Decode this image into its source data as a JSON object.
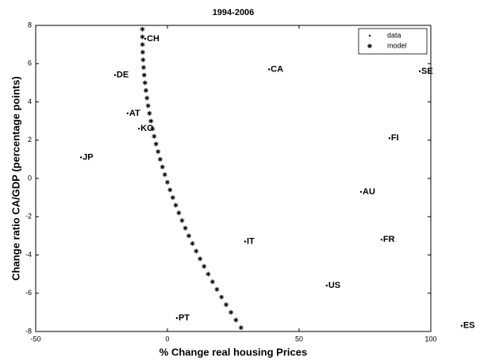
{
  "chart_data": {
    "type": "scatter",
    "title": "1994-2006",
    "xlabel": "% Change real housing Prices",
    "ylabel": "Change ratio CA/GDP (percentage points)",
    "xlim": [
      -50,
      100
    ],
    "ylim": [
      -8,
      8
    ],
    "xticks": [
      -50,
      0,
      50,
      100
    ],
    "yticks": [
      -8,
      -6,
      -4,
      -2,
      0,
      2,
      4,
      6,
      8
    ],
    "legend": "upper right",
    "series": [
      {
        "name": "data",
        "color": "#000000",
        "marker": "dot",
        "labels": [
          "CH",
          "DE",
          "CA",
          "SE",
          "AT",
          "KO",
          "FI",
          "JP",
          "AU",
          "IT",
          "FR",
          "US",
          "PT",
          "ES"
        ],
        "x": [
          -8.4,
          -19.9,
          38.6,
          95.8,
          -15.1,
          -10.8,
          84.3,
          -32.8,
          73.5,
          29.5,
          81.3,
          60.5,
          3.6,
          111.7
        ],
        "values": [
          7.3,
          5.4,
          5.7,
          5.6,
          3.4,
          2.6,
          2.1,
          1.1,
          -0.7,
          -3.3,
          -3.2,
          -5.6,
          -7.3,
          -7.7
        ]
      },
      {
        "name": "model",
        "color": "#000000",
        "marker": "asterisk",
        "x": [
          -9.49,
          -9.5,
          -9.46,
          -9.37,
          -9.23,
          -9.04,
          -8.79,
          -8.5,
          -8.15,
          -7.76,
          -7.31,
          -6.81,
          -6.26,
          -5.66,
          -5.01,
          -4.3,
          -3.55,
          -2.74,
          -1.88,
          -0.97,
          -0.01,
          1.0,
          2.06,
          3.17,
          4.34,
          5.55,
          6.82,
          8.14,
          9.51,
          10.93,
          12.4,
          13.93,
          15.5,
          17.13,
          18.8,
          20.53,
          22.31,
          24.14,
          26.02,
          27.95
        ],
        "values": [
          7.8,
          7.4,
          7.0,
          6.6,
          6.2,
          5.8,
          5.4,
          5.0,
          4.6,
          4.2,
          3.8,
          3.4,
          3.0,
          2.6,
          2.2,
          1.8,
          1.4,
          1.0,
          0.6,
          0.2,
          -0.2,
          -0.6,
          -1.0,
          -1.4,
          -1.8,
          -2.2,
          -2.6,
          -3.0,
          -3.4,
          -3.8,
          -4.2,
          -4.6,
          -5.0,
          -5.4,
          -5.8,
          -6.2,
          -6.6,
          -7.0,
          -7.4,
          -7.8
        ]
      }
    ]
  }
}
